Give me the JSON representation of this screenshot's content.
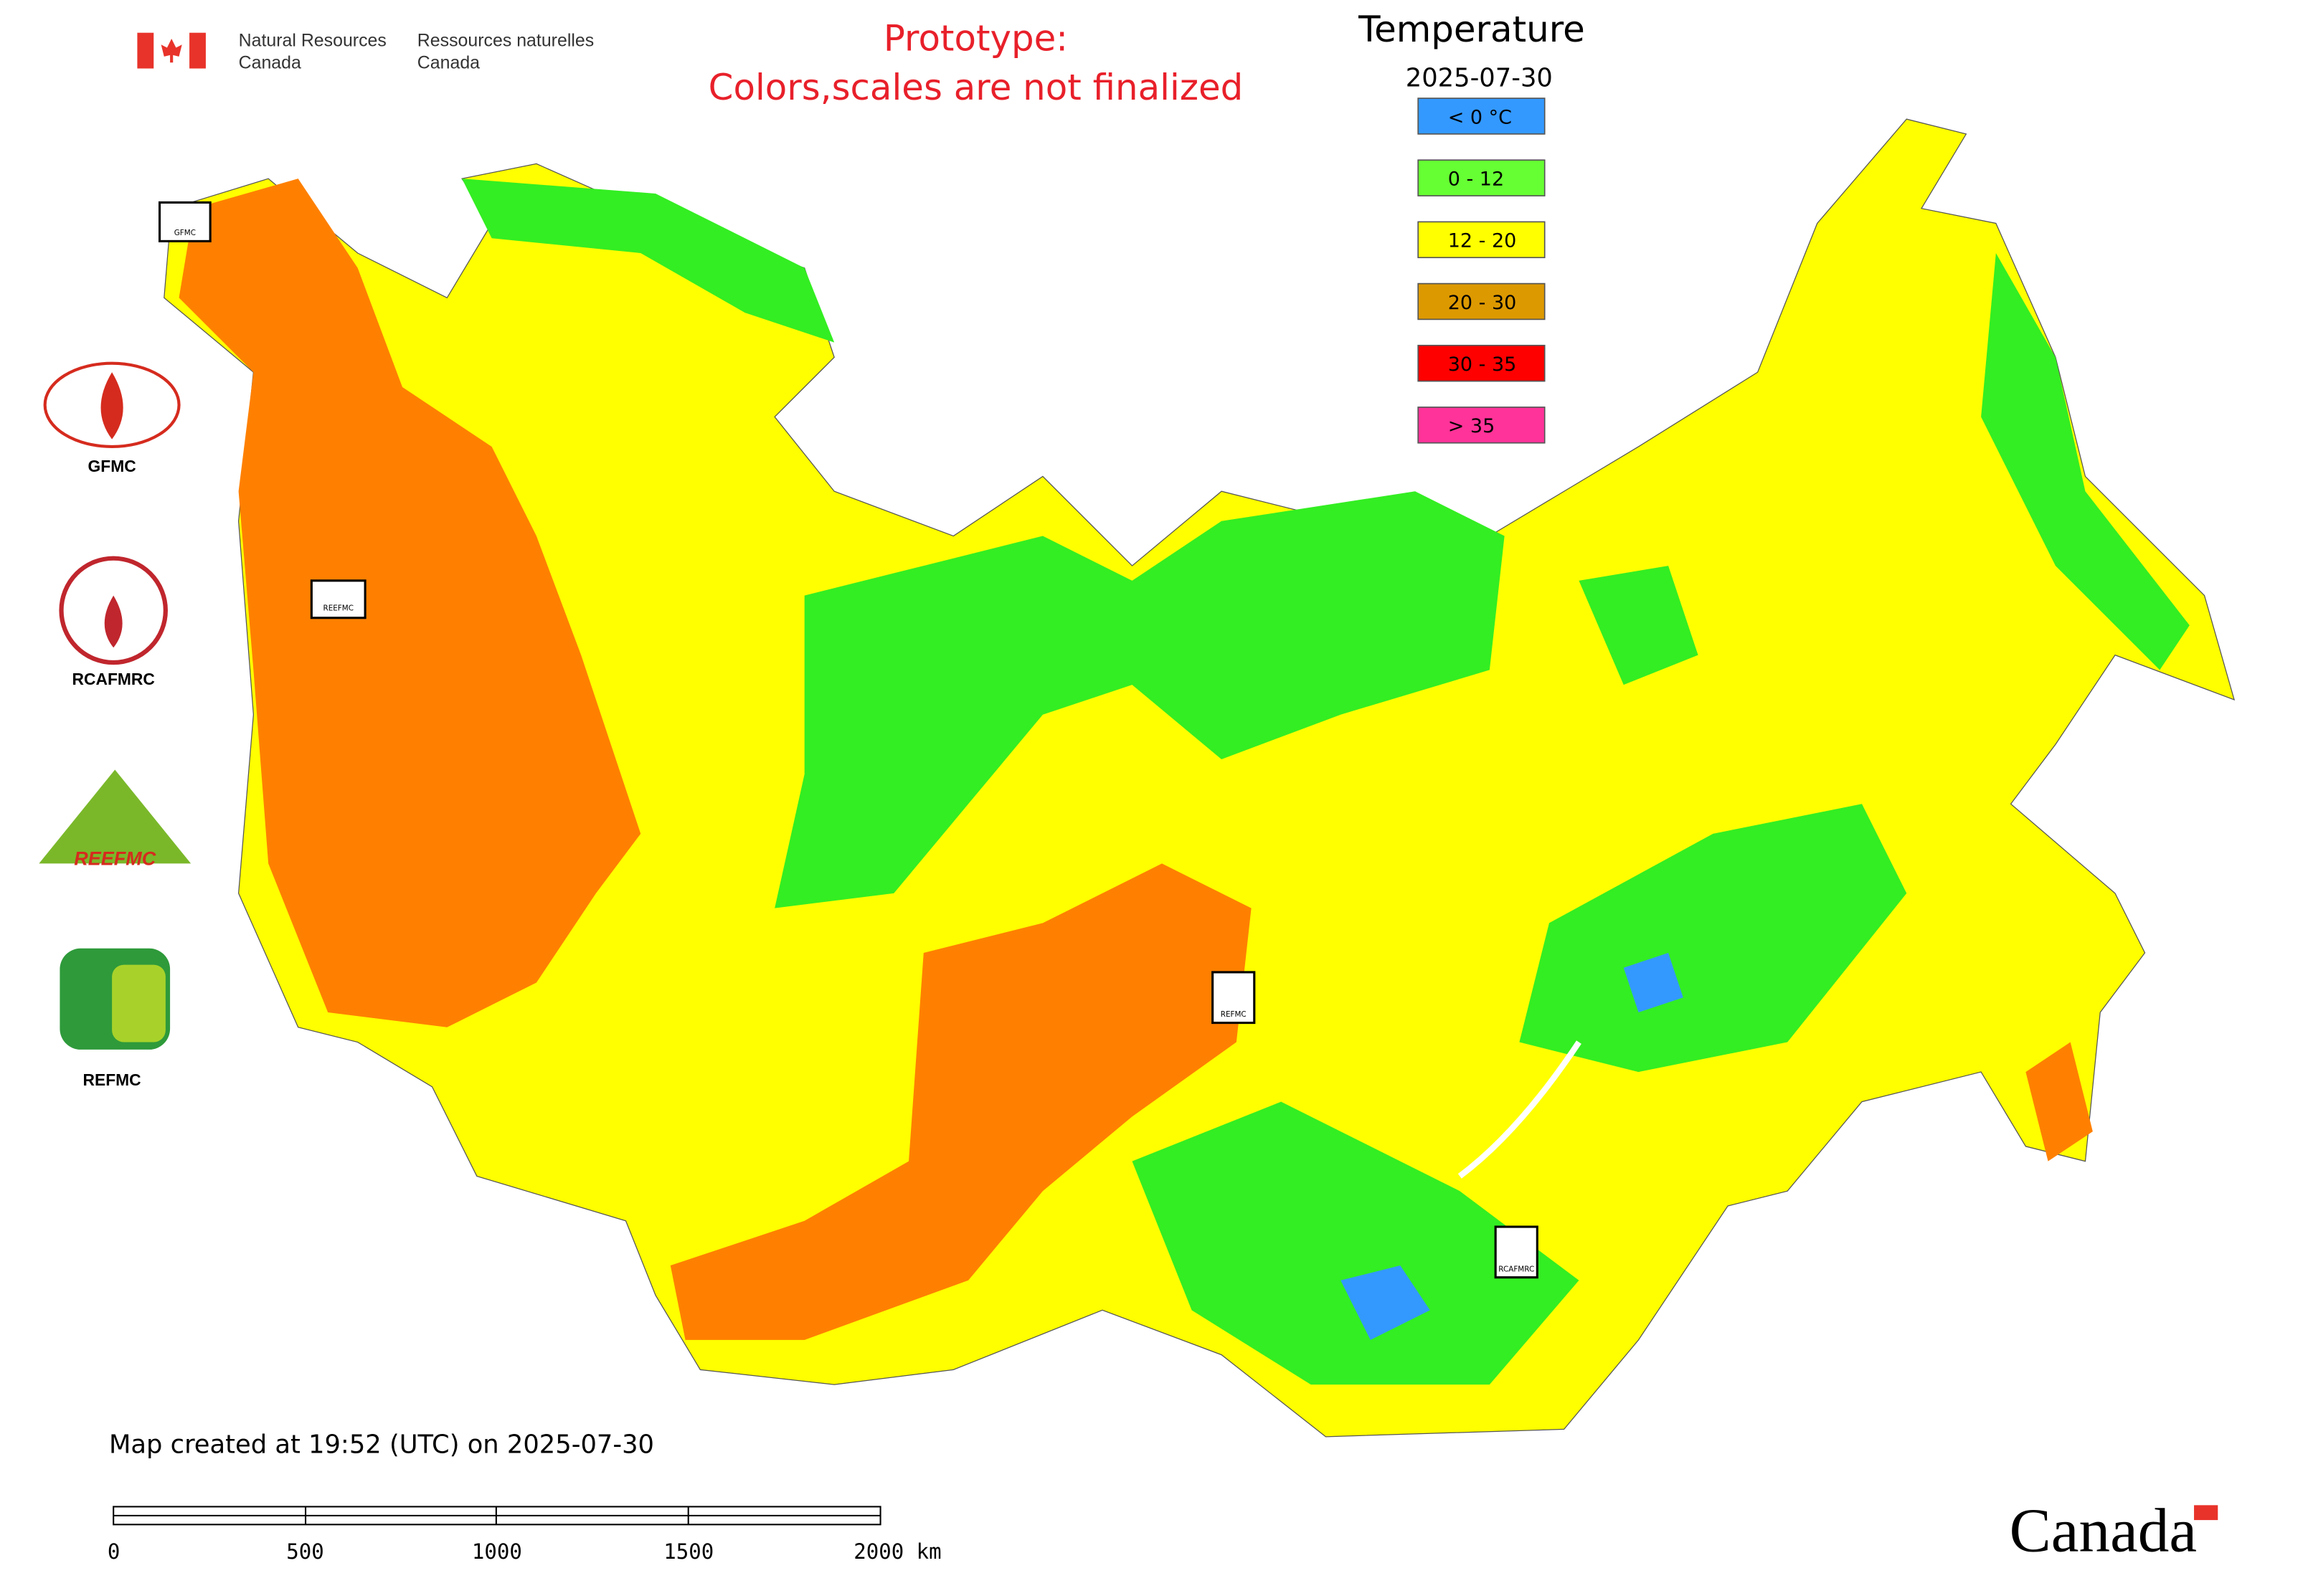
{
  "header": {
    "agency_en": [
      "Natural Resources",
      "Canada"
    ],
    "agency_fr": [
      "Ressources naturelles",
      "Canada"
    ],
    "notice": [
      "Prototype:",
      "Colors,scales are not finalized"
    ]
  },
  "legend": {
    "title": "Temperature",
    "date": "2025-07-30",
    "items": [
      {
        "label": "< 0 °C",
        "color": "#3399ff"
      },
      {
        "label": "0 - 12",
        "color": "#66ff33"
      },
      {
        "label": "12 - 20",
        "color": "#ffff00"
      },
      {
        "label": "20 - 30",
        "color": "#dd9900"
      },
      {
        "label": "30 - 35",
        "color": "#ff0000"
      },
      {
        "label": "> 35",
        "color": "#ff3399"
      }
    ]
  },
  "logos": [
    "GFMC",
    "RCAFMRC",
    "REEFMC",
    "REFMC"
  ],
  "map_markers": [
    "GFMC",
    "REEFMC",
    "REFMC",
    "RCAFMRC"
  ],
  "footer": {
    "created": "Map created at 19:52 (UTC) on 2025-07-30",
    "scale_labels": [
      "0",
      "500",
      "1000",
      "1500",
      "2000 km"
    ],
    "wordmark": "Canada"
  }
}
